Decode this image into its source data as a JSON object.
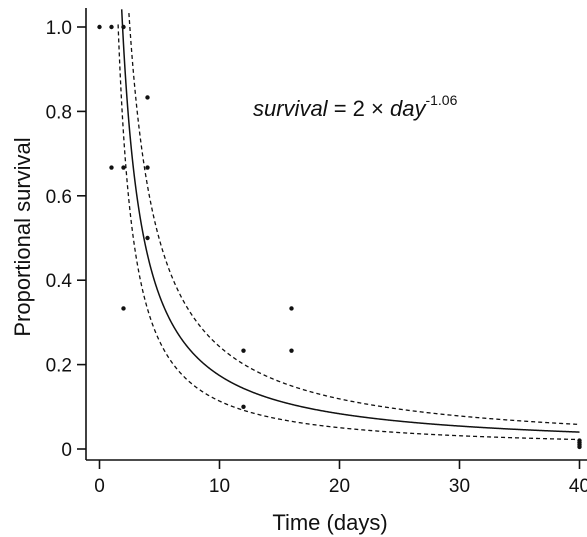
{
  "chart_data": {
    "type": "scatter",
    "title": "",
    "xlabel": "Time (days)",
    "ylabel": "Proportional survival",
    "xlim": [
      -1.5,
      41
    ],
    "ylim": [
      -0.03,
      1.03
    ],
    "x_ticks": [
      0,
      10,
      20,
      30,
      40
    ],
    "x_tick_labels": [
      "0",
      "10",
      "20",
      "30",
      "40"
    ],
    "y_ticks": [
      0,
      0.2,
      0.4,
      0.6,
      0.8,
      1.0
    ],
    "y_tick_labels": [
      "0",
      "0.2",
      "0.4",
      "0.6",
      "0.8",
      "1.0"
    ],
    "grid": false,
    "legend": null,
    "annotation": {
      "lhs": "survival",
      "op": " = 2 × ",
      "var": "day",
      "exponent": "-1.06"
    },
    "fit": {
      "type": "power",
      "a": 2,
      "b": -1.06,
      "x_range": [
        1.1,
        40
      ],
      "line_style": "solid"
    },
    "confidence_bands": [
      {
        "name": "upper",
        "a": 2.6,
        "b": -1.03,
        "line_style": "dashed"
      },
      {
        "name": "lower",
        "a": 1.68,
        "b": -1.17,
        "line_style": "dashed"
      }
    ],
    "series": [
      {
        "points": [
          [
            0,
            1.0
          ],
          [
            1,
            1.0
          ],
          [
            2,
            1.0
          ],
          [
            1,
            0.667
          ],
          [
            2,
            0.667
          ],
          [
            2,
            0.333
          ],
          [
            4,
            0.833
          ],
          [
            4,
            0.667
          ],
          [
            4,
            0.5
          ],
          [
            12,
            0.233
          ],
          [
            12,
            0.1
          ],
          [
            16,
            0.333
          ],
          [
            16,
            0.233
          ],
          [
            40,
            0.02
          ],
          [
            40,
            0.015
          ],
          [
            40,
            0.01
          ],
          [
            40,
            0.005
          ]
        ]
      }
    ]
  }
}
